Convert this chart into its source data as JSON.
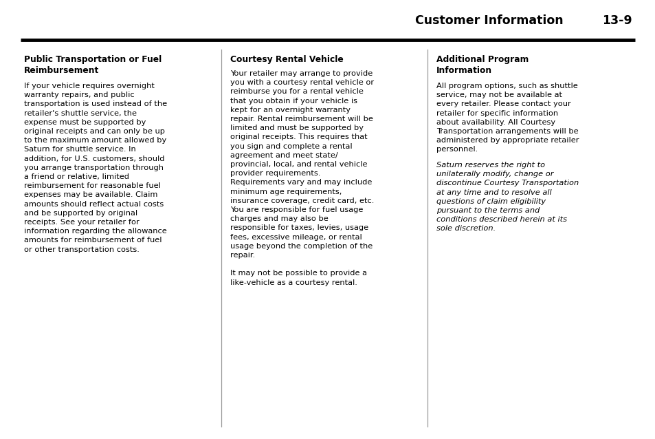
{
  "page_bg": "#ffffff",
  "header_title": "Customer Information",
  "header_number": "13-9",
  "col1_heading": "Public Transportation or Fuel\nReimbursement",
  "col1_body": "If your vehicle requires overnight\nwarranty repairs, and public\ntransportation is used instead of the\nretailer's shuttle service, the\nexpense must be supported by\noriginal receipts and can only be up\nto the maximum amount allowed by\nSaturn for shuttle service. In\naddition, for U.S. customers, should\nyou arrange transportation through\na friend or relative, limited\nreimbursement for reasonable fuel\nexpenses may be available. Claim\namounts should reflect actual costs\nand be supported by original\nreceipts. See your retailer for\ninformation regarding the allowance\namounts for reimbursement of fuel\nor other transportation costs.",
  "col2_heading": "Courtesy Rental Vehicle",
  "col2_body": "Your retailer may arrange to provide\nyou with a courtesy rental vehicle or\nreimburse you for a rental vehicle\nthat you obtain if your vehicle is\nkept for an overnight warranty\nrepair. Rental reimbursement will be\nlimited and must be supported by\noriginal receipts. This requires that\nyou sign and complete a rental\nagreement and meet state/\nprovincial, local, and rental vehicle\nprovider requirements.\nRequirements vary and may include\nminimum age requirements,\ninsurance coverage, credit card, etc.\nYou are responsible for fuel usage\ncharges and may also be\nresponsible for taxes, levies, usage\nfees, excessive mileage, or rental\nusage beyond the completion of the\nrepair.\n\nIt may not be possible to provide a\nlike-vehicle as a courtesy rental.",
  "col3_heading": "Additional Program\nInformation",
  "col3_body_normal": "All program options, such as shuttle\nservice, may not be available at\nevery retailer. Please contact your\nretailer for specific information\nabout availability. All Courtesy\nTransportation arrangements will be\nadministered by appropriate retailer\npersonnel.",
  "col3_body_italic": "Saturn reserves the right to\nunilaterally modify, change or\ndiscontinue Courtesy Transportation\nat any time and to resolve all\nquestions of claim eligibility\npursuant to the terms and\nconditions described herein at its\nsole discretion.",
  "divider_color": "#000000",
  "col_divider_color": "#999999",
  "text_color": "#000000",
  "header_font_size": 12.5,
  "body_font_size": 8.2,
  "heading_font_size": 8.8
}
